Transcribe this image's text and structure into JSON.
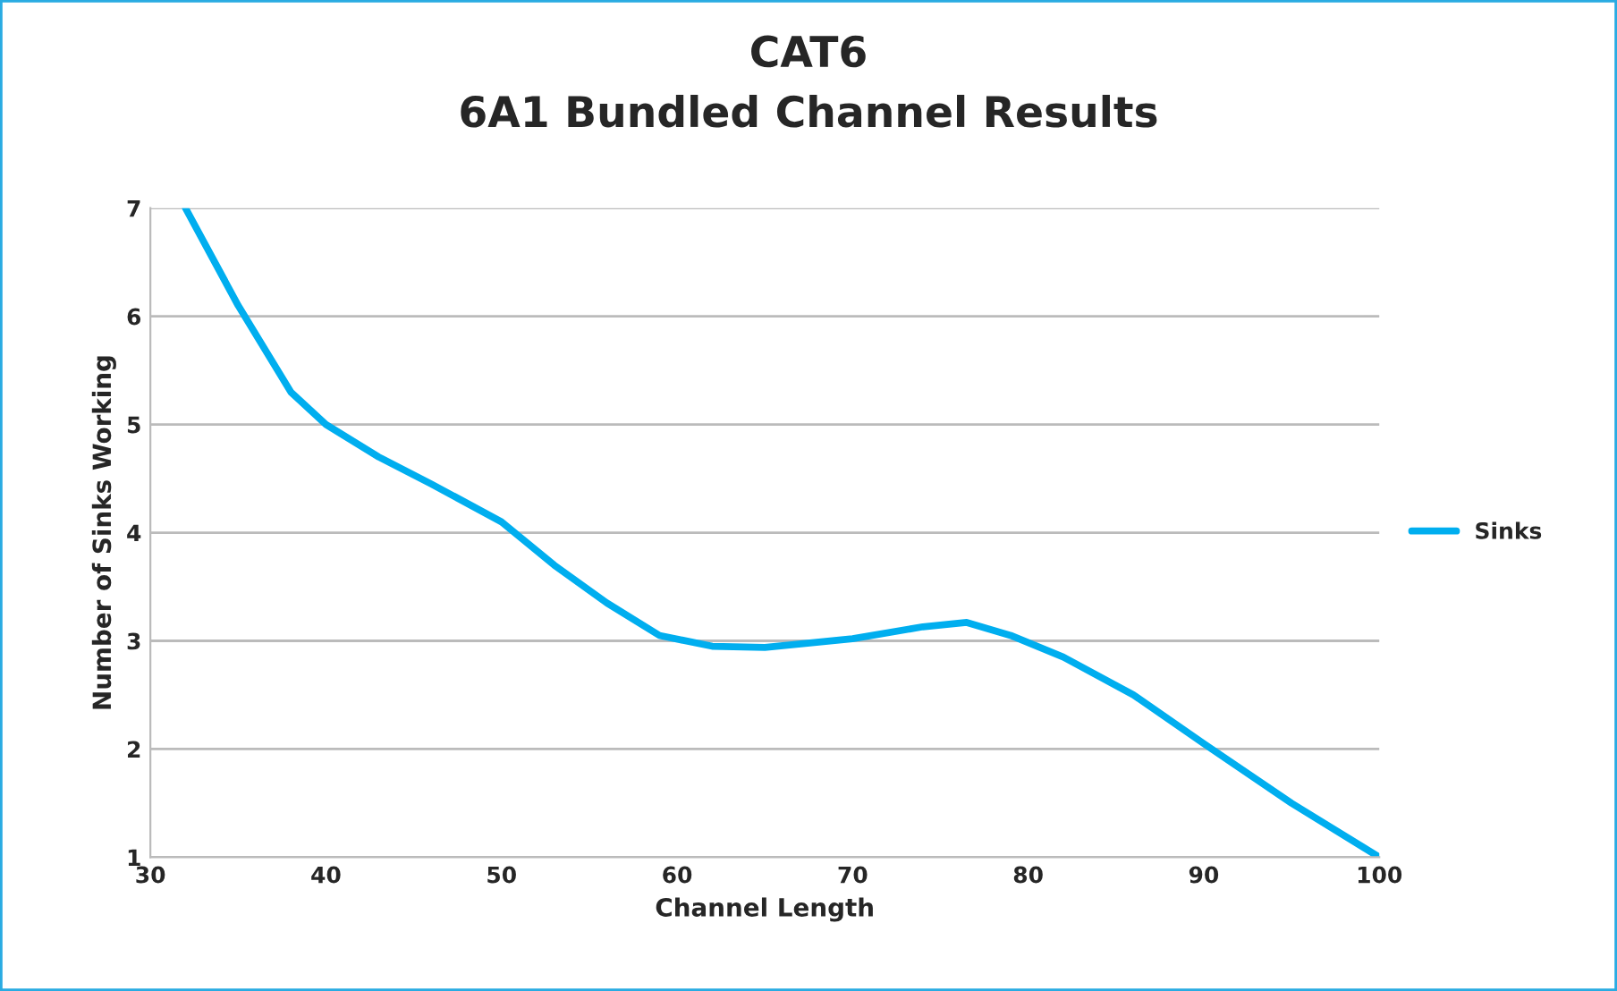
{
  "chart_data": {
    "type": "line",
    "title": "CAT6\n6A1 Bundled Channel Results",
    "xlabel": "Channel Length",
    "ylabel": "Number of Sinks Working",
    "x": [
      32,
      35,
      38,
      40,
      43,
      46,
      50,
      53,
      56,
      59,
      62,
      65,
      70,
      74,
      76.5,
      79,
      82,
      86,
      90,
      95,
      100
    ],
    "series": [
      {
        "name": "Sinks",
        "color": "#00aeef",
        "values": [
          7,
          6.1,
          5.3,
          5.0,
          4.7,
          4.45,
          4.1,
          3.7,
          3.35,
          3.05,
          2.95,
          2.94,
          3.02,
          3.13,
          3.17,
          3.05,
          2.85,
          2.5,
          2.05,
          1.5,
          1.0
        ]
      }
    ],
    "xlim": [
      30,
      100
    ],
    "xticks": [
      30,
      40,
      50,
      60,
      70,
      80,
      90,
      100
    ],
    "ylim": [
      1,
      7
    ],
    "yticks": [
      1,
      2,
      3,
      4,
      5,
      6,
      7
    ],
    "grid": "y",
    "legend": "right",
    "marker": "none",
    "line_style": "solid"
  }
}
